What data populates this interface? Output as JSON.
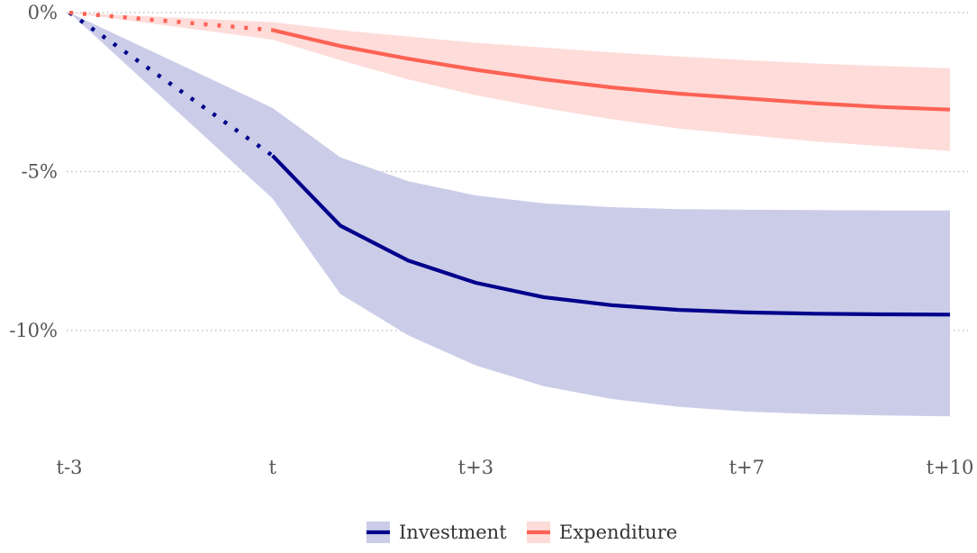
{
  "chart_data": {
    "type": "line",
    "x_ticks": [
      {
        "x": -3,
        "label": "t-3"
      },
      {
        "x": 0,
        "label": "t"
      },
      {
        "x": 3,
        "label": "t+3"
      },
      {
        "x": 7,
        "label": "t+7"
      },
      {
        "x": 10,
        "label": "t+10"
      }
    ],
    "y_ticks": [
      {
        "y": 0,
        "label": "0%"
      },
      {
        "y": -5,
        "label": "-5%"
      },
      {
        "y": -10,
        "label": "-10%"
      }
    ],
    "xlim": [
      -3,
      10
    ],
    "ylim": [
      -13.5,
      0.4
    ],
    "grid": "horizontal dotted",
    "legend_position": "bottom",
    "series": [
      {
        "name": "Investment",
        "color": "#00008b",
        "band_color": "#cbcde8",
        "pre_period_dotted": {
          "x": [
            -3,
            0
          ],
          "y": [
            0,
            -4.5
          ]
        },
        "x": [
          0,
          1,
          2,
          3,
          4,
          5,
          6,
          7,
          8,
          9,
          10
        ],
        "y": [
          -4.5,
          -6.7,
          -7.8,
          -8.5,
          -8.95,
          -9.2,
          -9.35,
          -9.43,
          -9.47,
          -9.49,
          -9.5
        ],
        "lower": [
          -5.85,
          -8.85,
          -10.15,
          -11.1,
          -11.75,
          -12.15,
          -12.4,
          -12.55,
          -12.63,
          -12.67,
          -12.7
        ],
        "upper": [
          -3.0,
          -4.55,
          -5.3,
          -5.75,
          -6.0,
          -6.12,
          -6.18,
          -6.2,
          -6.21,
          -6.22,
          -6.22
        ]
      },
      {
        "name": "Expenditure",
        "color": "#fd6254",
        "band_color": "#fedcd9",
        "pre_period_dotted": {
          "x": [
            -3,
            0
          ],
          "y": [
            0,
            -0.55
          ]
        },
        "x": [
          0,
          1,
          2,
          3,
          4,
          5,
          6,
          7,
          8,
          9,
          10
        ],
        "y": [
          -0.55,
          -1.05,
          -1.45,
          -1.8,
          -2.1,
          -2.35,
          -2.55,
          -2.7,
          -2.85,
          -2.97,
          -3.05
        ],
        "lower": [
          -0.85,
          -1.5,
          -2.1,
          -2.6,
          -3.0,
          -3.35,
          -3.65,
          -3.85,
          -4.05,
          -4.2,
          -4.35
        ],
        "upper": [
          -0.3,
          -0.55,
          -0.75,
          -0.95,
          -1.1,
          -1.25,
          -1.38,
          -1.5,
          -1.6,
          -1.68,
          -1.75
        ]
      }
    ]
  }
}
